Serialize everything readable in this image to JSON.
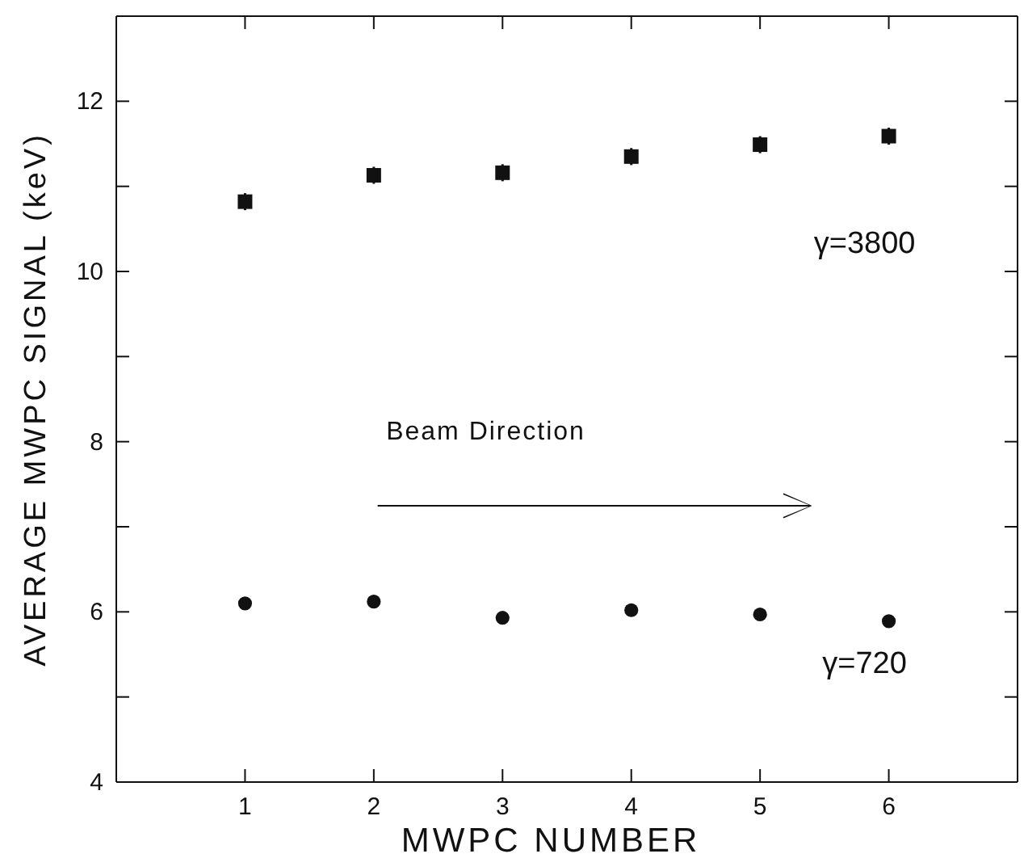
{
  "chart_data": {
    "type": "scatter",
    "xlabel": "MWPC NUMBER",
    "ylabel": "AVERAGE MWPC SIGNAL (keV)",
    "annotations": [
      "Beam Direction"
    ],
    "x": [
      1,
      2,
      3,
      4,
      5,
      6
    ],
    "series": [
      {
        "name": "γ=3800",
        "color": "#111111",
        "marker": "square",
        "values": [
          10.82,
          11.13,
          11.16,
          11.35,
          11.49,
          11.59
        ],
        "errors": [
          0.1,
          0.1,
          0.1,
          0.1,
          0.1,
          0.1
        ]
      },
      {
        "name": "γ=720",
        "color": "#111111",
        "marker": "circle",
        "values": [
          6.1,
          6.12,
          5.93,
          6.02,
          5.97,
          5.89
        ]
      }
    ],
    "xlim": [
      0,
      7
    ],
    "xticks": [
      1,
      2,
      3,
      4,
      5,
      6
    ],
    "ylim": [
      4,
      13
    ],
    "yticks": [
      4,
      {
        "value": 5,
        "label": null
      },
      6,
      {
        "value": 7,
        "label": null
      },
      8,
      {
        "value": 9,
        "label": null
      },
      10,
      {
        "value": 11,
        "label": null
      },
      12
    ],
    "legend": false
  }
}
